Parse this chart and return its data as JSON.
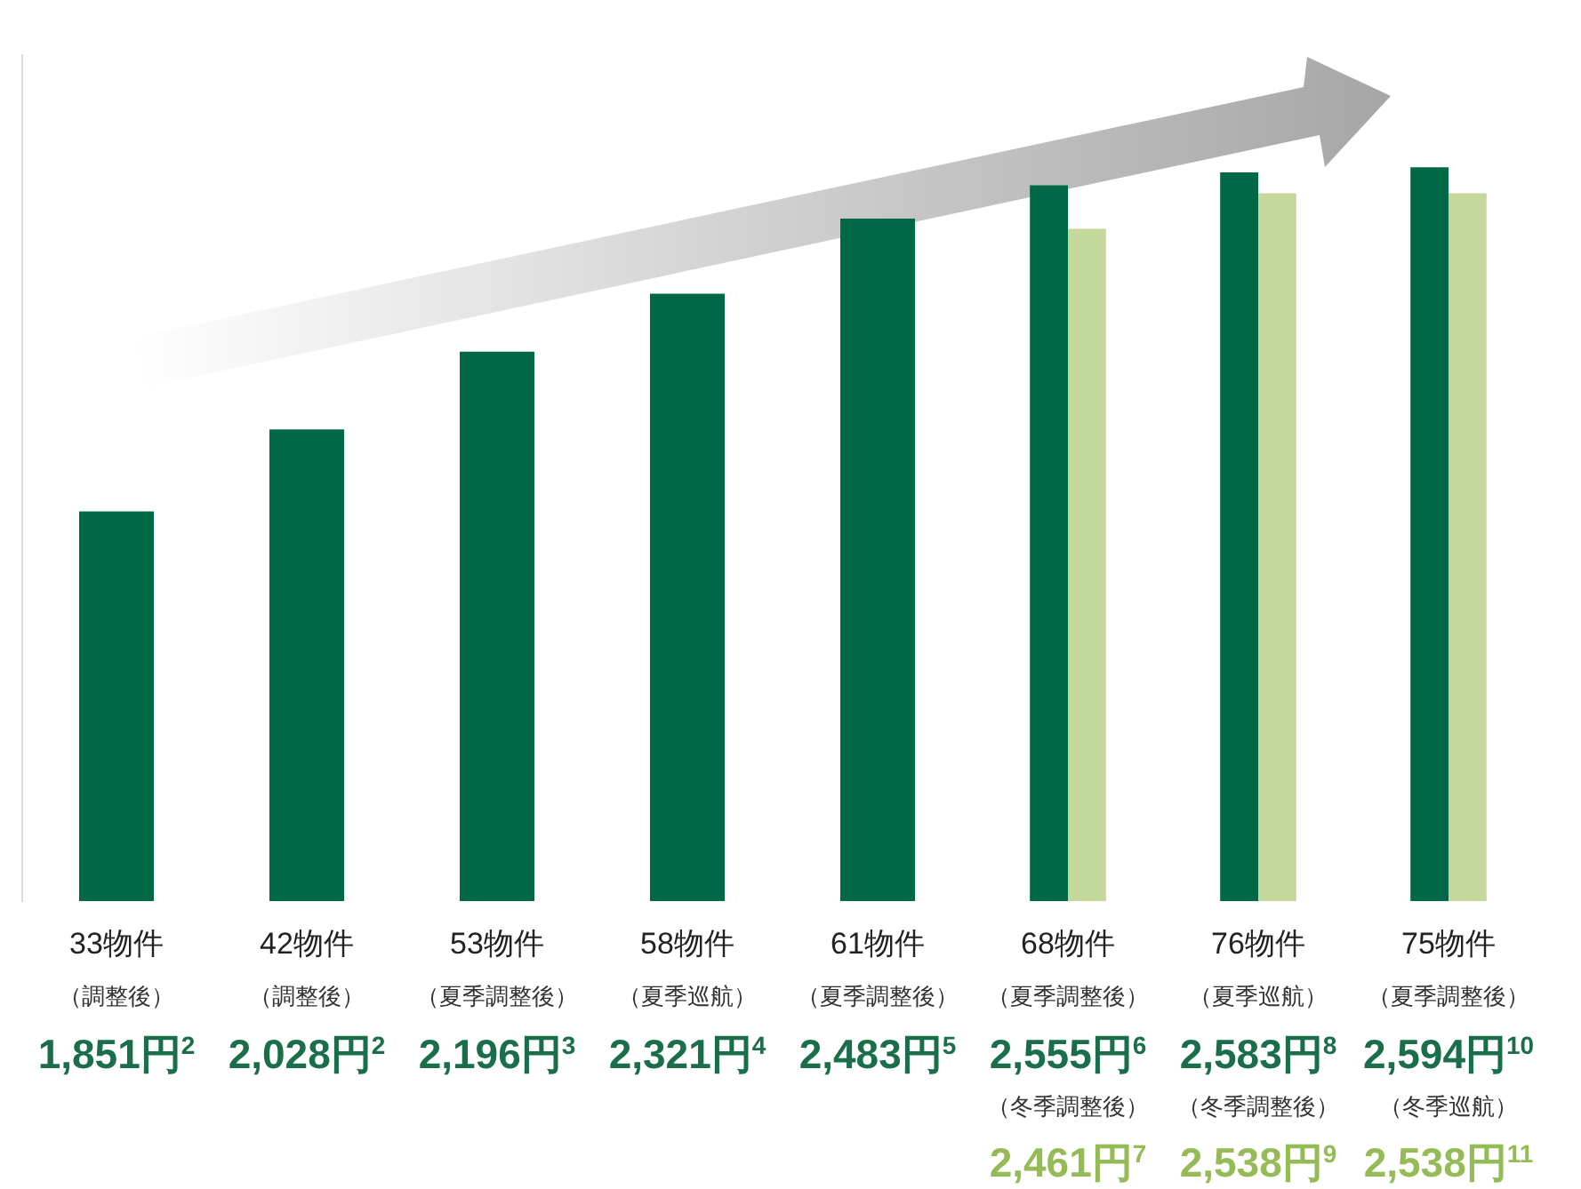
{
  "chart_data": {
    "type": "bar",
    "categories": [
      "33物件",
      "42物件",
      "53物件",
      "58物件",
      "61物件",
      "68物件",
      "76物件",
      "75物件"
    ],
    "ylim": [
      1010,
      2840
    ],
    "legend": false,
    "grid": false,
    "tick_labels": "x",
    "series": [
      {
        "color": "#006847",
        "values": [
          1851,
          2028,
          2196,
          2321,
          2483,
          2555,
          2583,
          2594
        ],
        "value_labels": [
          "1,851円$^{2}$",
          "2,028円$^{2}$",
          "2,196円$^{3}$",
          "2,321円$^{4}$",
          "2,483円$^{5}$",
          "2,555円$^{6}$",
          "2,583円$^{8}$",
          "2,594円$^{10}$"
        ]
      },
      {
        "color": "#c5d89b",
        "values": [
          null,
          null,
          null,
          null,
          null,
          2461,
          2538,
          2538
        ],
        "value_labels": [
          null,
          null,
          null,
          null,
          null,
          "2,461円$^{7}$",
          "2,538円$^{9}$",
          "2,538円$^{11}$"
        ]
      }
    ],
    "annotations": [
      "（調整後）",
      "（調整後）",
      "（夏季調整後）",
      "（夏季巡航）",
      "（夏季調整後）",
      "（夏季調整後）",
      "（夏季巡航）",
      "（夏季調整後）",
      "（冬季調整後）",
      "（冬季調整後）",
      "（冬季巡航）"
    ]
  }
}
